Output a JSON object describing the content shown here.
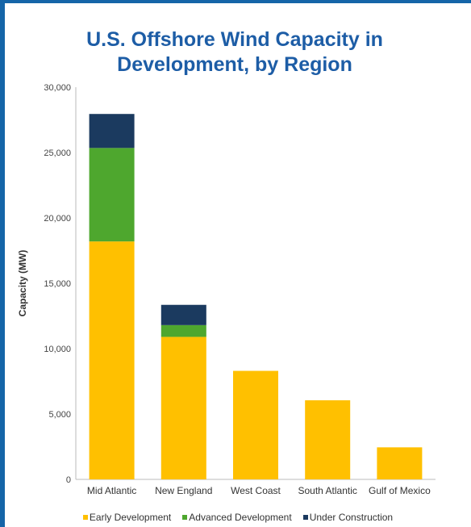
{
  "chart_data": {
    "type": "bar",
    "stacked": true,
    "title_line1": "U.S. Offshore Wind Capacity in",
    "title_line2": "Development, by Region",
    "xlabel": "",
    "ylabel": "Capacity (MW)",
    "ylim": [
      0,
      30000
    ],
    "yticks": [
      0,
      5000,
      10000,
      15000,
      20000,
      25000,
      30000
    ],
    "ytick_labels": [
      "0",
      "5,000",
      "10,000",
      "15,000",
      "20,000",
      "25,000",
      "30,000"
    ],
    "categories": [
      "Mid Atlantic",
      "New England",
      "West Coast",
      "South Atlantic",
      "Gulf of Mexico"
    ],
    "series": [
      {
        "name": "Early Development",
        "color": "#ffc000",
        "values": [
          18200,
          10900,
          8300,
          6050,
          2450
        ]
      },
      {
        "name": "Advanced Development",
        "color": "#4ea72e",
        "values": [
          7150,
          900,
          0,
          0,
          0
        ]
      },
      {
        "name": "Under Construction",
        "color": "#1b3a5f",
        "values": [
          2600,
          1550,
          0,
          0,
          0
        ]
      }
    ],
    "grid": false,
    "legend_position": "bottom"
  }
}
